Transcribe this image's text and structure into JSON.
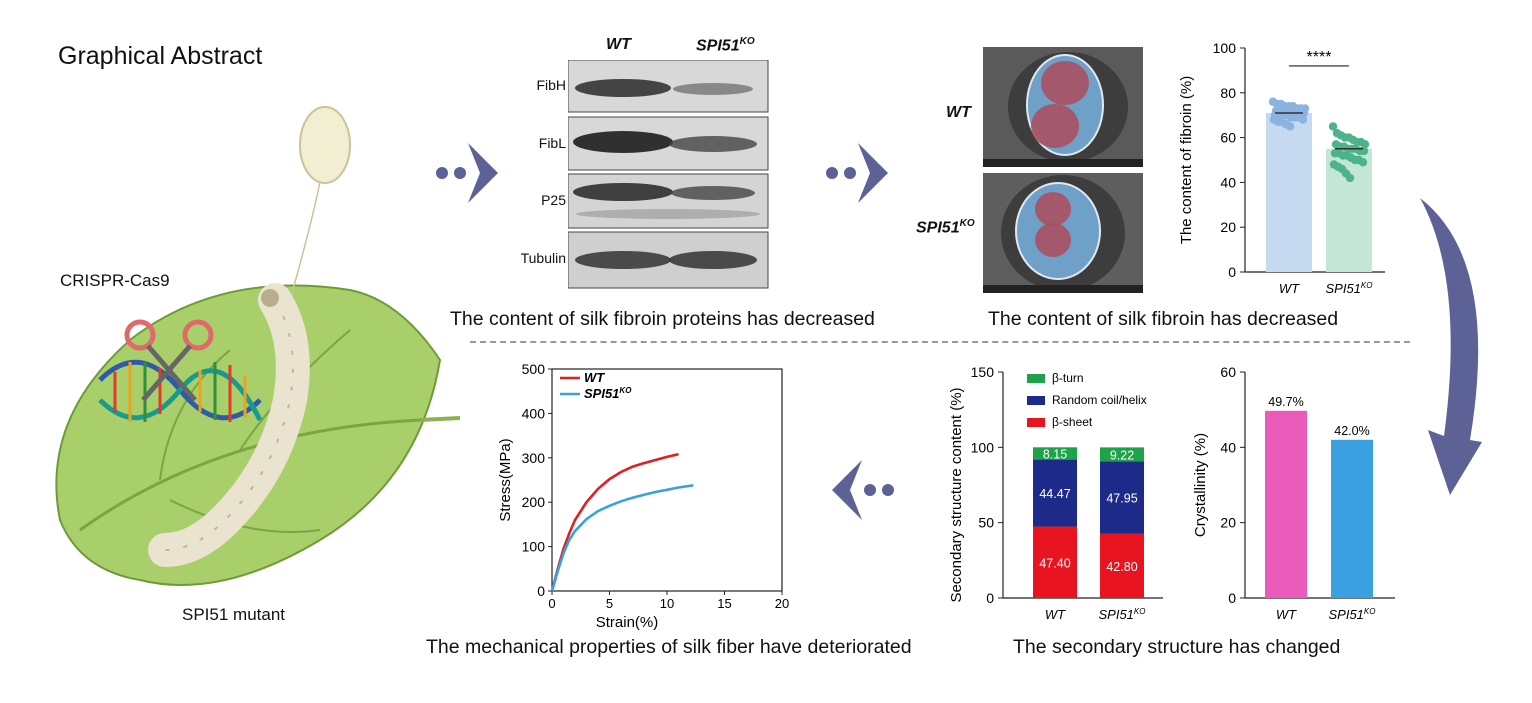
{
  "title": "Graphical Abstract",
  "left_panel": {
    "crispr_label": "CRISPR-Cas9",
    "mutant_label": "SPI51 mutant"
  },
  "western_blot": {
    "lanes": [
      "WT",
      "SPI51"
    ],
    "lane_superscript": "KO",
    "bands": [
      "FibH",
      "FibL",
      "P25",
      "Tubulin"
    ],
    "caption": "The content of silk fibroin proteins has decreased"
  },
  "sem": {
    "row_labels": [
      "WT",
      "SPI51"
    ],
    "row_superscript": "KO",
    "caption": "The content of silk fibroin has decreased"
  },
  "colors": {
    "arrow": "#5c6296",
    "wt_bar": "#c5d9f0",
    "wt_dot": "#8ab3e0",
    "ko_bar": "#c3e6d6",
    "ko_dot": "#4cb38a",
    "beta_turn": "#1fa34a",
    "random_coil": "#1e2a8a",
    "beta_sheet": "#e8141f",
    "wt_line": "#e02020",
    "ko_line": "#3aa0e0",
    "cryst_wt": "#ea5ab8",
    "cryst_ko": "#3aa0e0"
  },
  "chart_data": [
    {
      "type": "scatter",
      "title": "",
      "ylabel": "The content of fibroin (%)",
      "categories": [
        "WT",
        "SPI51KO"
      ],
      "ylim": [
        0,
        100
      ],
      "yticks": [
        0,
        20,
        40,
        60,
        80,
        100
      ],
      "significance": "****",
      "series": [
        {
          "name": "WT",
          "mean": 71,
          "points": [
            76,
            75,
            75,
            74,
            74,
            74,
            73,
            73,
            73,
            72,
            72,
            72,
            72,
            71,
            71,
            71,
            71,
            70,
            70,
            70,
            70,
            69,
            69,
            69,
            68,
            68,
            67,
            67,
            66,
            65
          ]
        },
        {
          "name": "SPI51KO",
          "mean": 55,
          "points": [
            65,
            62,
            61,
            60,
            60,
            59,
            58,
            58,
            57,
            57,
            56,
            56,
            55,
            55,
            55,
            54,
            54,
            53,
            53,
            52,
            52,
            51,
            50,
            50,
            49,
            48,
            47,
            46,
            44,
            42
          ]
        }
      ]
    },
    {
      "type": "line",
      "title": "",
      "xlabel": "Strain(%)",
      "ylabel": "Stress(MPa)",
      "xlim": [
        0,
        20
      ],
      "ylim": [
        0,
        500
      ],
      "xticks": [
        0,
        5,
        10,
        15,
        20
      ],
      "yticks": [
        0,
        100,
        200,
        300,
        400,
        500
      ],
      "legend": [
        "WT",
        "SPI51KO"
      ],
      "series": [
        {
          "name": "WT",
          "x": [
            0,
            0.5,
            1,
            1.5,
            2,
            3,
            4,
            5,
            6,
            7,
            8,
            9,
            10,
            11
          ],
          "y": [
            0,
            50,
            95,
            130,
            160,
            200,
            230,
            252,
            268,
            280,
            288,
            295,
            302,
            308
          ]
        },
        {
          "name": "SPI51KO",
          "x": [
            0,
            0.5,
            1,
            1.5,
            2,
            3,
            4,
            5,
            6,
            7,
            8,
            9,
            10,
            11,
            12.3
          ],
          "y": [
            0,
            45,
            85,
            115,
            135,
            162,
            180,
            192,
            202,
            210,
            217,
            223,
            228,
            233,
            238
          ]
        }
      ],
      "caption": "The mechanical properties of silk fiber have deteriorated"
    },
    {
      "type": "bar",
      "stacked": true,
      "ylabel": "Secondary structure content (%)",
      "categories": [
        "WT",
        "SPI51KO"
      ],
      "ylim": [
        0,
        150
      ],
      "yticks": [
        0,
        50,
        100,
        150
      ],
      "series": [
        {
          "name": "β-sheet",
          "values": [
            47.4,
            42.8
          ],
          "labels": [
            "47.40",
            "42.80"
          ]
        },
        {
          "name": "Random coil/helix",
          "values": [
            44.47,
            47.95
          ],
          "labels": [
            "44.47",
            "47.95"
          ]
        },
        {
          "name": "β-turn",
          "values": [
            8.15,
            9.22
          ],
          "labels": [
            "8.15",
            "9.22"
          ]
        }
      ],
      "legend_order": [
        "β-turn",
        "Random coil/helix",
        "β-sheet"
      ],
      "caption": "The secondary structure has changed"
    },
    {
      "type": "bar",
      "ylabel": "Crystallinity (%)",
      "categories": [
        "WT",
        "SPI51KO"
      ],
      "values": [
        49.7,
        42.0
      ],
      "labels": [
        "49.7%",
        "42.0%"
      ],
      "ylim": [
        0,
        60
      ],
      "yticks": [
        0,
        20,
        40,
        60
      ]
    }
  ]
}
